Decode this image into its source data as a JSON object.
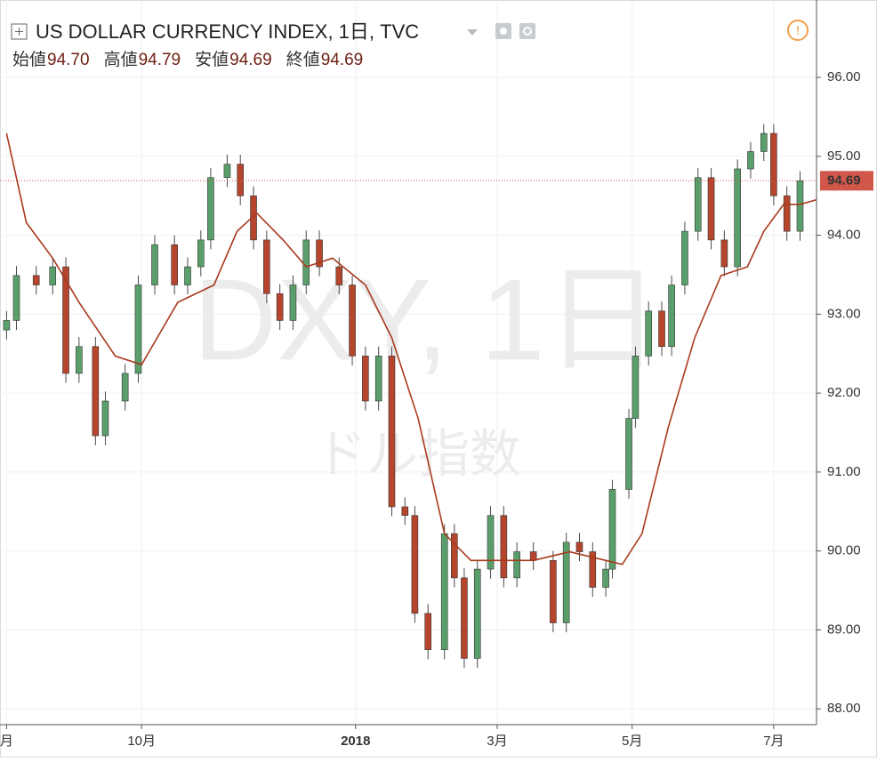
{
  "chart_data": {
    "type": "candlestick",
    "title": "US DOLLAR CURRENCY INDEX, 1日, TVC",
    "ohlc": [
      {
        "label": "始値",
        "value": "94.70"
      },
      {
        "label": "高値",
        "value": "94.79"
      },
      {
        "label": "安値",
        "value": "94.69"
      },
      {
        "label": "終値",
        "value": "94.69"
      }
    ],
    "watermark": "DXY, 1日",
    "watermark_sub": "ドル指数",
    "up_color": "#5a9f6b",
    "down_color": "#b5452d",
    "ma_color": "#a8391c",
    "grid": true,
    "xlim": [
      0,
      248
    ],
    "ylim": [
      87.8,
      96.98
    ],
    "xticks": [
      {
        "value": 2,
        "label": "月"
      },
      {
        "value": 43,
        "label": "10月"
      },
      {
        "value": 108,
        "label": "2018"
      },
      {
        "value": 151,
        "label": "3月"
      },
      {
        "value": 192,
        "label": "5月"
      },
      {
        "value": 235,
        "label": "7月"
      }
    ],
    "yticks": [
      {
        "value": 88,
        "label": "88.00"
      },
      {
        "value": 89,
        "label": "89.00"
      },
      {
        "value": 90,
        "label": "90.00"
      },
      {
        "value": 91,
        "label": "91.00"
      },
      {
        "value": 92,
        "label": "92.00"
      },
      {
        "value": 93,
        "label": "93.00"
      },
      {
        "value": 94,
        "label": "94.00"
      },
      {
        "value": 95,
        "label": "95.00"
      },
      {
        "value": 96,
        "label": "96.00"
      }
    ],
    "last_price": {
      "value": 94.69,
      "label": "94.69"
    },
    "candles": {
      "x": [
        2,
        5,
        11,
        16,
        20,
        24,
        29,
        32,
        38,
        42,
        47,
        53,
        57,
        61,
        64,
        69,
        73,
        77,
        81,
        85,
        89,
        93,
        97,
        103,
        107,
        111,
        115,
        119,
        123,
        126,
        130,
        135,
        138,
        141,
        145,
        149,
        153,
        157,
        162,
        168,
        172,
        176,
        180,
        184,
        186,
        191,
        193,
        197,
        201,
        204,
        208,
        212,
        216,
        220,
        224,
        228,
        232,
        235,
        239,
        243
      ],
      "open": [
        92.8,
        92.92,
        93.49,
        93.37,
        93.6,
        92.25,
        92.59,
        91.46,
        91.9,
        92.25,
        93.37,
        93.88,
        93.37,
        93.6,
        93.94,
        94.73,
        94.9,
        94.5,
        93.94,
        93.26,
        92.92,
        93.37,
        93.94,
        93.6,
        93.37,
        92.47,
        91.9,
        92.47,
        90.56,
        90.45,
        89.21,
        88.75,
        90.22,
        89.66,
        88.64,
        89.77,
        90.45,
        89.66,
        89.99,
        89.88,
        89.09,
        90.11,
        89.99,
        89.54,
        89.77,
        90.78,
        91.68,
        92.47,
        93.04,
        92.59,
        93.37,
        94.05,
        94.73,
        93.94,
        93.6,
        94.84,
        95.06,
        95.29,
        94.5,
        94.05
      ],
      "high": [
        93.04,
        93.61,
        93.61,
        93.72,
        93.72,
        92.71,
        92.71,
        92.02,
        92.37,
        93.49,
        94.0,
        94.0,
        93.72,
        94.06,
        94.85,
        95.02,
        95.02,
        94.62,
        94.06,
        93.38,
        93.49,
        94.06,
        94.06,
        93.72,
        93.49,
        92.59,
        92.59,
        92.59,
        90.68,
        90.57,
        89.33,
        90.34,
        90.34,
        89.78,
        89.89,
        90.57,
        90.57,
        90.11,
        90.11,
        90.0,
        90.23,
        90.23,
        90.11,
        89.89,
        90.9,
        91.8,
        92.59,
        93.16,
        93.16,
        93.49,
        94.17,
        94.85,
        94.85,
        94.06,
        94.96,
        95.18,
        95.41,
        95.41,
        94.62,
        94.81
      ],
      "low": [
        92.68,
        92.8,
        93.25,
        93.25,
        92.13,
        92.13,
        91.34,
        91.34,
        91.78,
        92.13,
        93.25,
        93.25,
        93.25,
        93.48,
        93.82,
        94.61,
        94.38,
        93.82,
        93.14,
        92.8,
        92.8,
        93.25,
        93.48,
        93.25,
        92.35,
        91.78,
        91.78,
        90.44,
        90.33,
        89.09,
        88.63,
        88.63,
        89.54,
        88.52,
        88.52,
        89.65,
        89.54,
        89.54,
        89.76,
        88.97,
        88.97,
        89.87,
        89.42,
        89.42,
        89.65,
        90.66,
        91.56,
        92.35,
        92.47,
        92.47,
        93.25,
        93.93,
        93.82,
        93.48,
        93.48,
        94.72,
        94.94,
        94.38,
        93.93,
        93.93
      ],
      "close": [
        92.92,
        93.49,
        93.37,
        93.6,
        92.25,
        92.59,
        91.46,
        91.9,
        92.25,
        93.37,
        93.88,
        93.37,
        93.6,
        93.94,
        94.73,
        94.9,
        94.5,
        93.94,
        93.26,
        92.92,
        93.37,
        93.94,
        93.6,
        93.37,
        92.47,
        91.9,
        92.47,
        90.56,
        90.45,
        89.21,
        88.75,
        90.22,
        89.66,
        88.64,
        89.77,
        90.45,
        89.66,
        89.99,
        89.88,
        89.09,
        90.11,
        89.99,
        89.54,
        89.77,
        90.78,
        91.68,
        92.47,
        93.04,
        92.59,
        93.37,
        94.05,
        94.73,
        93.94,
        93.6,
        94.84,
        95.06,
        95.29,
        94.5,
        94.05,
        94.69
      ]
    },
    "ma": {
      "x": [
        2,
        8,
        16,
        24,
        35,
        43,
        54,
        65,
        72,
        78,
        86,
        93,
        101,
        111,
        119,
        127,
        135,
        143,
        151,
        162,
        173,
        184,
        189,
        195,
        203,
        211,
        219,
        227,
        232,
        238,
        243,
        248
      ],
      "values": [
        95.29,
        94.16,
        93.71,
        93.15,
        92.47,
        92.36,
        93.15,
        93.37,
        94.05,
        94.28,
        93.94,
        93.6,
        93.71,
        93.37,
        92.7,
        91.68,
        90.22,
        89.88,
        89.88,
        89.88,
        89.99,
        89.88,
        89.83,
        90.22,
        91.57,
        92.7,
        93.49,
        93.6,
        94.05,
        94.39,
        94.39,
        94.45
      ]
    }
  }
}
